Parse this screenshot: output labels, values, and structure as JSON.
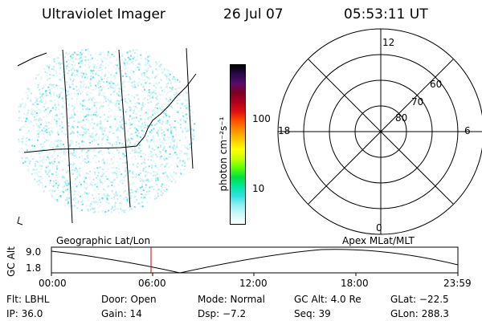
{
  "header": {
    "instrument": "Ultraviolet Imager",
    "date": "26 Jul 07",
    "time": "05:53:11 UT"
  },
  "colorbar": {
    "unit_label": "photon cm⁻²s⁻¹",
    "ticks": [
      "100",
      "10"
    ],
    "colors": [
      "#000000",
      "#2a0a4a",
      "#5a0a6a",
      "#800020",
      "#b00020",
      "#e01010",
      "#ff5000",
      "#ff9000",
      "#ffc800",
      "#ffff00",
      "#c8ff00",
      "#60ff00",
      "#00e040",
      "#00e8a0",
      "#30e0e0",
      "#90f0f0",
      "#d0f8f8",
      "#ffffff"
    ]
  },
  "polar": {
    "mlt_labels": {
      "top": "12",
      "left": "18",
      "right": "6",
      "bottom": "0"
    },
    "lat_labels": [
      "60",
      "70",
      "80"
    ]
  },
  "strip": {
    "left_label": "Geographic Lat/Lon",
    "right_label": "Apex MLat/MLT",
    "axis_title": "GC Alt",
    "y_ticks": [
      "9.0",
      "1.8"
    ],
    "x_ticks": [
      "00:00",
      "06:00",
      "12:00",
      "18:00",
      "23:59"
    ]
  },
  "status": {
    "flt": "Flt: LBHL",
    "door": "Door: Open",
    "mode": "Mode: Normal",
    "gcalt": "GC Alt: 4.0 Re",
    "glat": "GLat: −22.5",
    "ip": "IP: 36.0",
    "gain": "Gain: 14",
    "dsp": "Dsp:   −7.2",
    "seq": "Seq: 39",
    "glon": "GLon: 288.3"
  },
  "strip_series": {
    "current_time_marker": "05:53:11",
    "marker_color": "#cc0000"
  }
}
